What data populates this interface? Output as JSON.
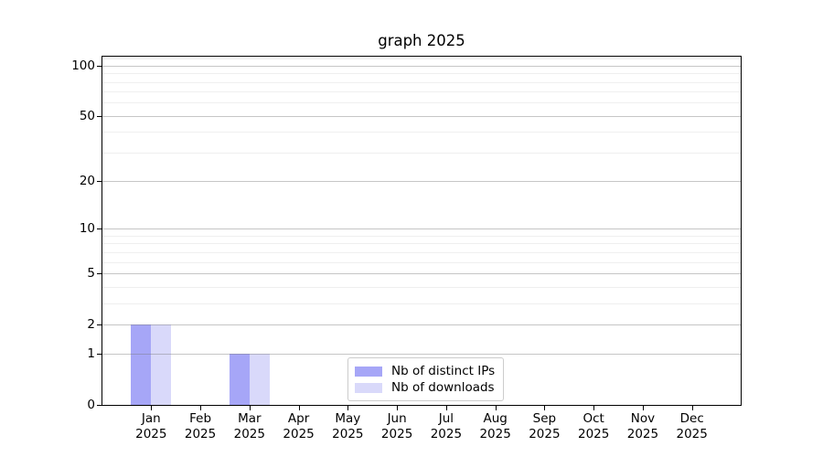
{
  "chart_data": {
    "type": "bar",
    "title": "graph 2025",
    "categories": [
      "Jan",
      "Feb",
      "Mar",
      "Apr",
      "May",
      "Jun",
      "Jul",
      "Aug",
      "Sep",
      "Oct",
      "Nov",
      "Dec"
    ],
    "category_year": "2025",
    "series": [
      {
        "name": "Nb of distinct IPs",
        "color": "#a6a6f7",
        "values": [
          2,
          0,
          1,
          0,
          0,
          0,
          0,
          0,
          0,
          0,
          0,
          0
        ]
      },
      {
        "name": "Nb of downloads",
        "color": "#d9d9fa",
        "values": [
          2,
          0,
          1,
          0,
          0,
          0,
          0,
          0,
          0,
          0,
          0,
          0
        ]
      }
    ],
    "y_axis": {
      "scale": "log1p",
      "ticks": [
        0,
        1,
        2,
        5,
        10,
        20,
        50,
        100
      ],
      "minor_gridlines": [
        3,
        4,
        6,
        7,
        8,
        9,
        30,
        40,
        60,
        70,
        80,
        90,
        110
      ],
      "max": 113
    },
    "xlabel": "",
    "ylabel": "",
    "grid": true,
    "legend_position": "bottom-center"
  },
  "colors": {
    "spine": "#000000",
    "background": "#ffffff",
    "legend_border": "#cccccc"
  }
}
